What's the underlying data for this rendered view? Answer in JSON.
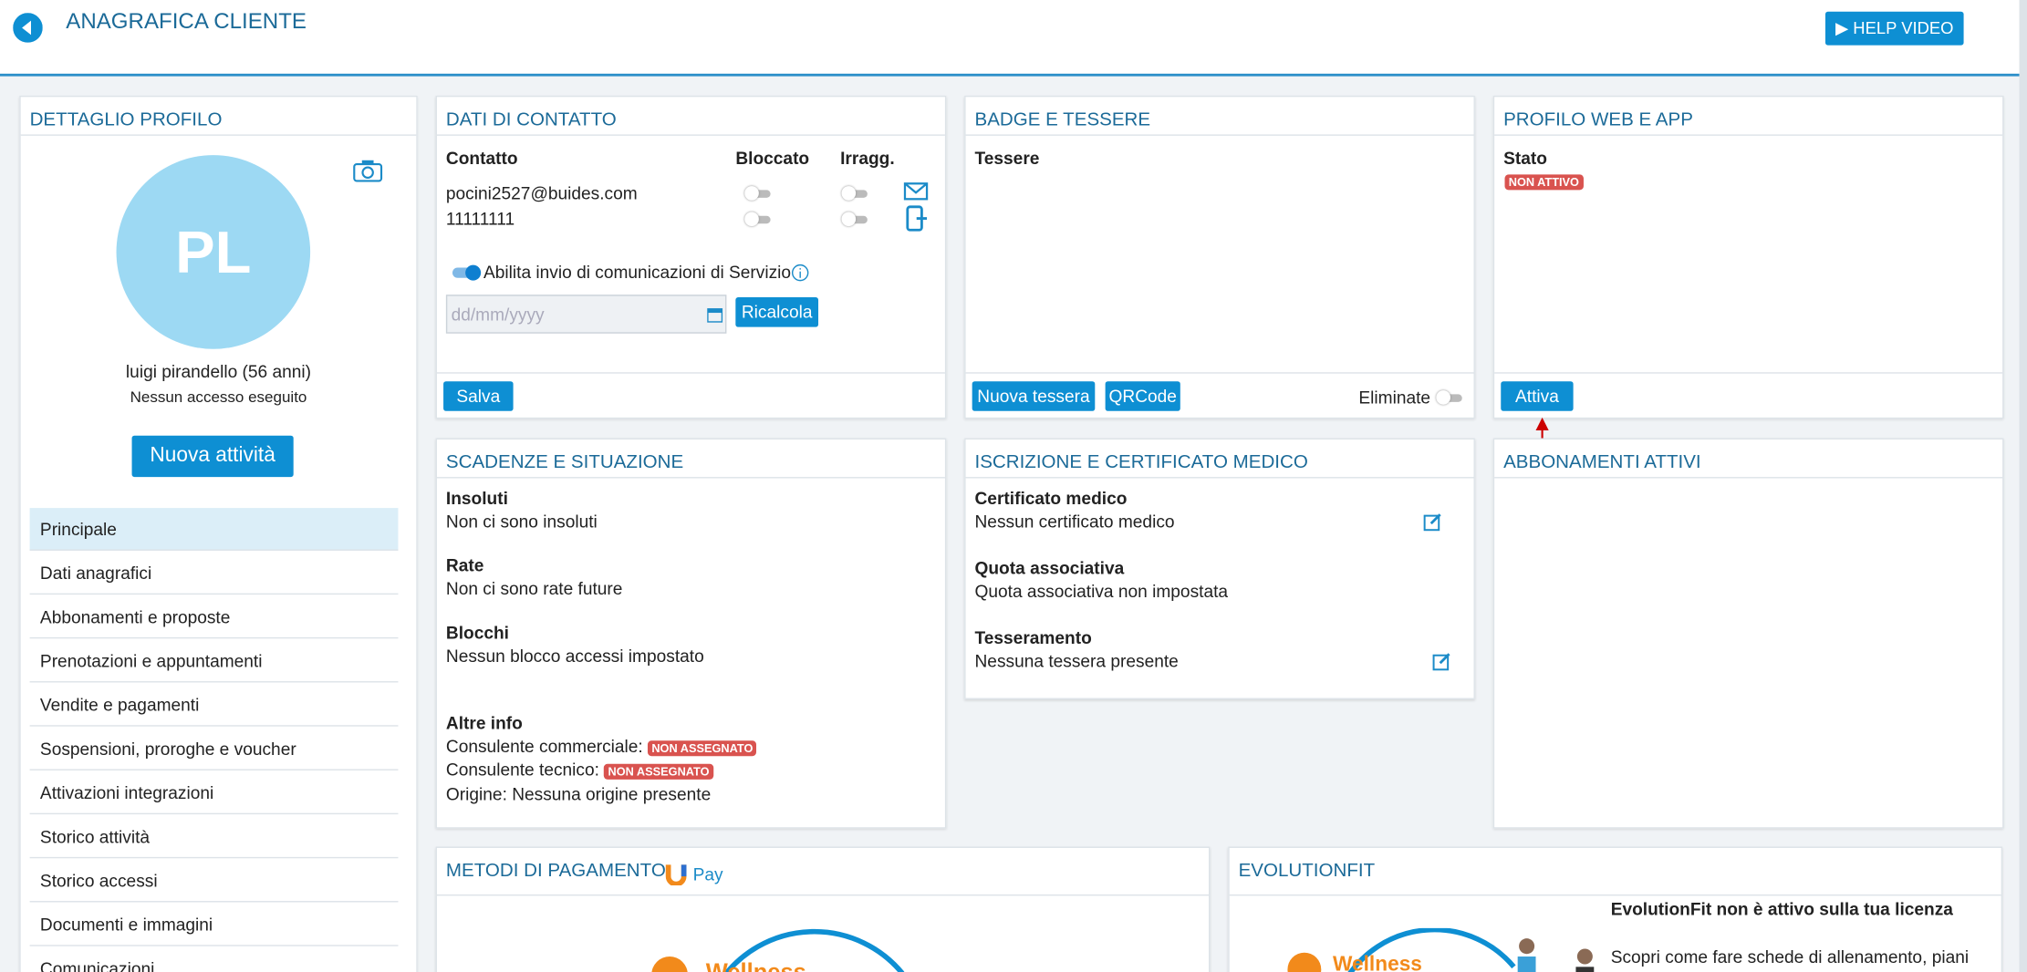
{
  "header": {
    "title": "ANAGRAFICA CLIENTE",
    "help": "HELP VIDEO"
  },
  "profile": {
    "title": "DETTAGLIO PROFILO",
    "initials": "PL",
    "name": "luigi pirandello (56 anni)",
    "access": "Nessun accesso eseguito",
    "button": "Nuova attività",
    "menu": [
      "Principale",
      "Dati anagrafici",
      "Abbonamenti e proposte",
      "Prenotazioni e appuntamenti",
      "Vendite e pagamenti",
      "Sospensioni, proroghe e voucher",
      "Attivazioni integrazioni",
      "Storico attività",
      "Storico accessi",
      "Documenti e immagini",
      "Comunicazioni"
    ]
  },
  "contact": {
    "title": "DATI DI CONTATTO",
    "columns": [
      "Contatto",
      "Bloccato",
      "Irragg."
    ],
    "rows": [
      "pocini2527@buides.com",
      "11111111"
    ],
    "toggle": "Abilita invio di comunicazioni di Servizio",
    "date": "dd/mm/yyyy",
    "recalc": "Ricalcola",
    "save": "Salva"
  },
  "badge": {
    "title": "BADGE E TESSERE",
    "label": "Tessere",
    "buttons": [
      "Nuova tessera",
      "QRCode"
    ],
    "deleted": "Eliminate"
  },
  "web": {
    "title": "PROFILO WEB E APP",
    "label": "Stato",
    "status": "NON ATTIVO",
    "button": "Attiva"
  },
  "deadlines": {
    "title": "SCADENZE E SITUAZIONE",
    "items": [
      {
        "label": "Insoluti",
        "text": "Non ci sono insoluti"
      },
      {
        "label": "Rate",
        "text": "Non ci sono rate future"
      },
      {
        "label": "Blocchi",
        "text": "Nessun blocco accessi impostato"
      }
    ],
    "other": {
      "label": "Altre info",
      "commercial": "Consulente commerciale:",
      "technical": "Consulente tecnico:",
      "unassigned": "NON ASSEGNATO",
      "origin": "Origine: Nessuna origine presente"
    }
  },
  "medical": {
    "title": "ISCRIZIONE E CERTIFICATO MEDICO",
    "items": [
      {
        "label": "Certificato medico",
        "text": "Nessun certificato medico"
      },
      {
        "label": "Quota associativa",
        "text": "Quota associativa non impostata"
      },
      {
        "label": "Tesseramento",
        "text": "Nessuna tessera presente"
      }
    ]
  },
  "subscriptions": {
    "title": "ABBONAMENTI ATTIVI"
  },
  "payments": {
    "title": "METODI DI PAGAMENTO",
    "pay": "Pay",
    "logo": "Wellness"
  },
  "evolution": {
    "title": "EVOLUTIONFIT",
    "heading": "EvolutionFit non è attivo sulla tua licenza",
    "text": "Scopri come fare schede di allenamento, piani",
    "logo": "Wellness"
  }
}
